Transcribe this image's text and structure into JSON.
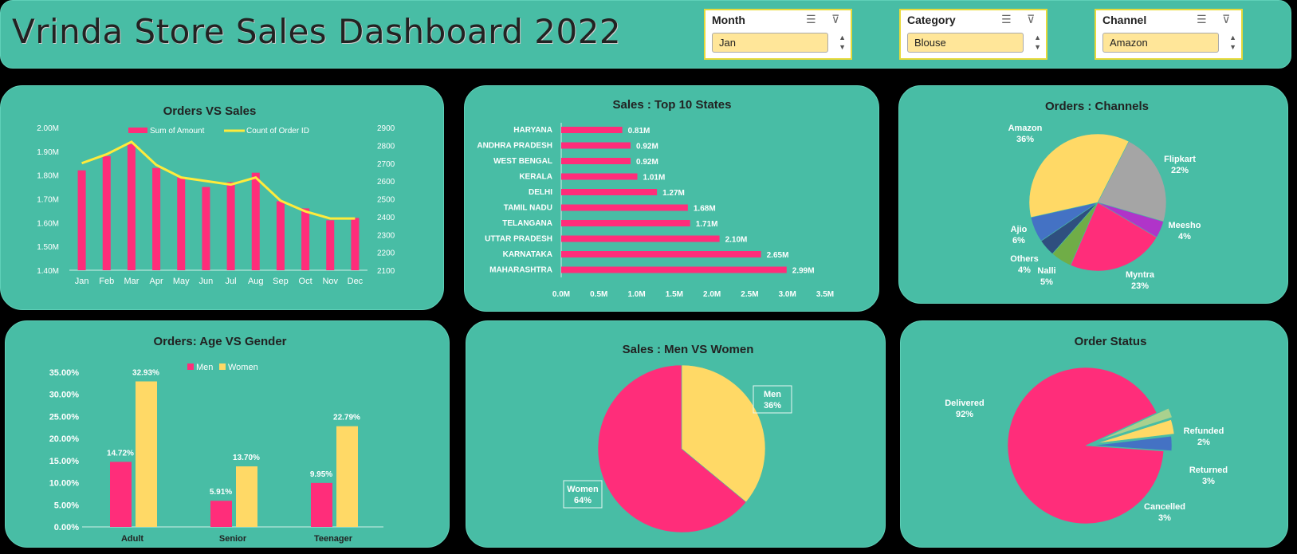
{
  "header": {
    "title": "Vrinda Store Sales Dashboard 2022",
    "slicers": [
      {
        "label": "Month",
        "selected": "Jan"
      },
      {
        "label": "Category",
        "selected": "Blouse"
      },
      {
        "label": "Channel",
        "selected": "Amazon"
      }
    ]
  },
  "colors": {
    "pink": "#FF2D7A",
    "yellow": "#FFD966",
    "gray": "#A5A5A5",
    "purple": "#B034C9",
    "blue": "#4472C4",
    "navy": "#2F4F7F",
    "green": "#70AD47",
    "palegreen": "#A9D18E"
  },
  "chart_data": [
    {
      "type": "bar+line",
      "title": "Orders VS Sales",
      "categories": [
        "Jan",
        "Feb",
        "Mar",
        "Apr",
        "May",
        "Jun",
        "Jul",
        "Aug",
        "Sep",
        "Oct",
        "Nov",
        "Dec"
      ],
      "series": [
        {
          "name": "Sum of Amount",
          "values": [
            1.82,
            1.88,
            1.93,
            1.83,
            1.79,
            1.75,
            1.77,
            1.81,
            1.69,
            1.66,
            1.61,
            1.62
          ]
        },
        {
          "name": "Count of Order ID",
          "values": [
            2700,
            2750,
            2820,
            2690,
            2620,
            2600,
            2580,
            2620,
            2490,
            2430,
            2390,
            2390
          ]
        }
      ],
      "y1_ticks": [
        "2.00M",
        "1.90M",
        "1.80M",
        "1.70M",
        "1.60M",
        "1.50M",
        "1.40M"
      ],
      "y2_ticks": [
        "2900",
        "2800",
        "2700",
        "2600",
        "2500",
        "2400",
        "2300",
        "2200",
        "2100"
      ],
      "ylim": [
        1.4,
        2.0
      ],
      "y2lim": [
        2100,
        2900
      ]
    },
    {
      "type": "bar",
      "title": "Sales : Top 10 States",
      "categories": [
        "HARYANA",
        "ANDHRA PRADESH",
        "WEST BENGAL",
        "KERALA",
        "DELHI",
        "TAMIL NADU",
        "TELANGANA",
        "UTTAR PRADESH",
        "KARNATAKA",
        "MAHARASHTRA"
      ],
      "values": [
        0.81,
        0.92,
        0.92,
        1.01,
        1.27,
        1.68,
        1.71,
        2.1,
        2.65,
        2.99
      ],
      "labels": [
        "0.81M",
        "0.92M",
        "0.92M",
        "1.01M",
        "1.27M",
        "1.68M",
        "1.71M",
        "2.10M",
        "2.65M",
        "2.99M"
      ],
      "x_ticks": [
        "0.0M",
        "0.5M",
        "1.0M",
        "1.5M",
        "2.0M",
        "2.5M",
        "3.0M",
        "3.5M"
      ],
      "xlim": [
        0,
        3.5
      ]
    },
    {
      "type": "pie",
      "title": "Orders : Channels",
      "slices": [
        {
          "label": "Flipkart",
          "pct": "22%",
          "value": 22,
          "color": "#A5A5A5"
        },
        {
          "label": "Meesho",
          "pct": "4%",
          "value": 4,
          "color": "#B034C9"
        },
        {
          "label": "Myntra",
          "pct": "23%",
          "value": 23,
          "color": "#FF2D7A"
        },
        {
          "label": "Nalli",
          "pct": "5%",
          "value": 5,
          "color": "#70AD47"
        },
        {
          "label": "Others",
          "pct": "4%",
          "value": 4,
          "color": "#2F4F7F"
        },
        {
          "label": "Ajio",
          "pct": "6%",
          "value": 6,
          "color": "#4472C4"
        },
        {
          "label": "Amazon",
          "pct": "36%",
          "value": 36,
          "color": "#FFD966"
        }
      ]
    },
    {
      "type": "bar",
      "title": "Orders: Age VS Gender",
      "categories": [
        "Adult",
        "Senior",
        "Teenager"
      ],
      "series": [
        {
          "name": "Men",
          "values": [
            14.72,
            5.91,
            9.95
          ],
          "labels": [
            "14.72%",
            "5.91%",
            "9.95%"
          ]
        },
        {
          "name": "Women",
          "values": [
            32.93,
            13.7,
            22.79
          ],
          "labels": [
            "32.93%",
            "13.70%",
            "22.79%"
          ]
        }
      ],
      "y_ticks": [
        "35.00%",
        "30.00%",
        "25.00%",
        "20.00%",
        "15.00%",
        "10.00%",
        "5.00%",
        "0.00%"
      ],
      "ylim": [
        0,
        35
      ]
    },
    {
      "type": "pie",
      "title": "Sales : Men VS Women",
      "slices": [
        {
          "label": "Men",
          "pct": "36%",
          "value": 36,
          "color": "#FFD966"
        },
        {
          "label": "Women",
          "pct": "64%",
          "value": 64,
          "color": "#FF2D7A"
        }
      ]
    },
    {
      "type": "pie",
      "title": "Order Status",
      "slices": [
        {
          "label": "Delivered",
          "pct": "92%",
          "value": 92,
          "color": "#FF2D7A"
        },
        {
          "label": "Refunded",
          "pct": "2%",
          "value": 2,
          "color": "#A9D18E"
        },
        {
          "label": "Returned",
          "pct": "3%",
          "value": 3,
          "color": "#FFD966"
        },
        {
          "label": "Cancelled",
          "pct": "3%",
          "value": 3,
          "color": "#4472C4"
        }
      ]
    }
  ]
}
